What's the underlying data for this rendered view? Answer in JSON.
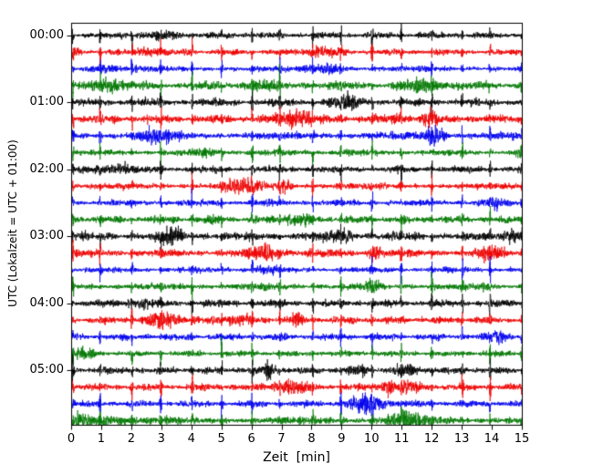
{
  "chart_data": {
    "type": "line",
    "variant": "helicorder-seismogram",
    "title": "",
    "xlabel": "Zeit  [min]",
    "ylabel": "UTC (Lokalzeit = UTC + 01:00)",
    "xlim": [
      0,
      15
    ],
    "x_tick_labels": [
      "0",
      "1",
      "2",
      "3",
      "4",
      "5",
      "6",
      "7",
      "8",
      "9",
      "10",
      "11",
      "12",
      "13",
      "14",
      "15"
    ],
    "y_tick_labels": [
      "00:00",
      "01:00",
      "02:00",
      "03:00",
      "04:00",
      "05:00"
    ],
    "num_traces": 24,
    "traces_per_hour": 4,
    "minutes_per_trace": 15,
    "spike_interval_min": 1,
    "trace_colors": [
      "#000000",
      "#ee0000",
      "#0000ee",
      "#007700"
    ],
    "axis_color": "#000000",
    "background_color": "#ffffff",
    "grid": false,
    "legend": false
  }
}
